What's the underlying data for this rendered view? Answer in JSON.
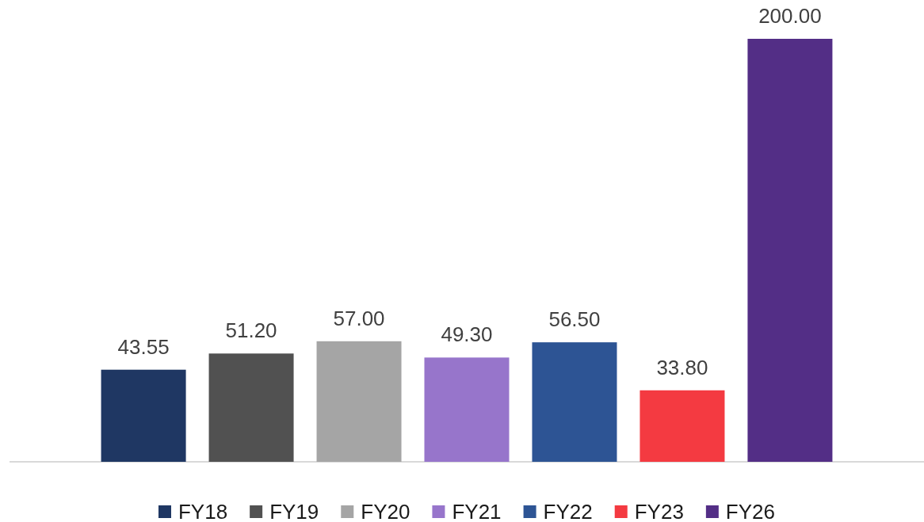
{
  "chart_data": {
    "type": "bar",
    "stacked": true,
    "legend": "bottom",
    "categories": [
      null,
      null,
      null,
      null,
      null,
      null,
      null
    ],
    "series": [
      {
        "name": "FY18",
        "color": "#1f3763",
        "values": [
          43.55,
          null,
          null,
          null,
          null,
          null,
          null
        ],
        "value_labels": [
          "43.55",
          null,
          null,
          null,
          null,
          null,
          null
        ]
      },
      {
        "name": "FY19",
        "color": "#515151",
        "values": [
          null,
          51.2,
          null,
          null,
          null,
          null,
          null
        ],
        "value_labels": [
          null,
          "51.20",
          null,
          null,
          null,
          null,
          null
        ]
      },
      {
        "name": "FY20",
        "color": "#a5a5a5",
        "values": [
          null,
          null,
          57.0,
          null,
          null,
          null,
          null
        ],
        "value_labels": [
          null,
          null,
          "57.00",
          null,
          null,
          null,
          null
        ]
      },
      {
        "name": "FY21",
        "color": "#9775cb",
        "values": [
          null,
          null,
          null,
          49.3,
          null,
          null,
          null
        ],
        "value_labels": [
          null,
          null,
          null,
          "49.30",
          null,
          null,
          null
        ]
      },
      {
        "name": "FY22",
        "color": "#2d5494",
        "values": [
          null,
          null,
          null,
          null,
          56.5,
          null,
          null
        ],
        "value_labels": [
          null,
          null,
          null,
          null,
          "56.50",
          null,
          null
        ]
      },
      {
        "name": "FY23",
        "color": "#f43a41",
        "values": [
          null,
          null,
          null,
          null,
          null,
          33.8,
          null
        ],
        "value_labels": [
          null,
          null,
          null,
          null,
          null,
          "33.80",
          null
        ]
      },
      {
        "name": "FY26",
        "color": "#532e86",
        "values": [
          null,
          null,
          null,
          null,
          null,
          null,
          200.0
        ],
        "value_labels": [
          null,
          null,
          null,
          null,
          null,
          null,
          "200.00"
        ]
      }
    ]
  }
}
